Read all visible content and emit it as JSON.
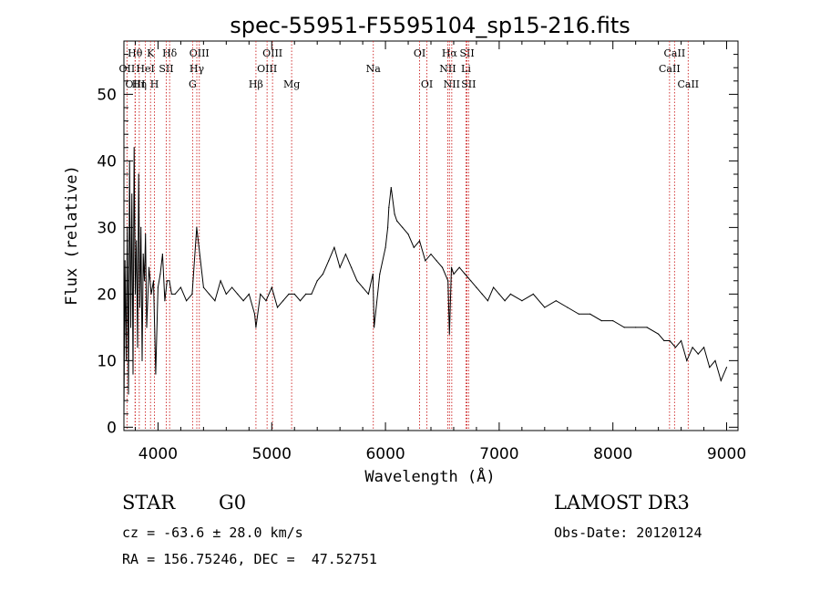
{
  "chart_data": {
    "type": "line",
    "title": "spec-55951-F5595104_sp15-216.fits",
    "xlabel": "Wavelength (Å)",
    "ylabel": "Flux (relative)",
    "xlim": [
      3700,
      9100
    ],
    "ylim": [
      -0.5,
      58
    ],
    "xticks": [
      4000,
      5000,
      6000,
      7000,
      8000,
      9000
    ],
    "yticks": [
      0,
      10,
      20,
      30,
      40,
      50
    ],
    "grid": false,
    "series": [
      {
        "name": "spectrum",
        "x": [
          3700,
          3710,
          3720,
          3730,
          3740,
          3750,
          3760,
          3770,
          3780,
          3790,
          3800,
          3810,
          3820,
          3830,
          3840,
          3850,
          3860,
          3870,
          3880,
          3890,
          3900,
          3920,
          3940,
          3960,
          3980,
          4000,
          4020,
          4040,
          4060,
          4080,
          4100,
          4120,
          4150,
          4200,
          4250,
          4300,
          4340,
          4400,
          4450,
          4500,
          4550,
          4600,
          4650,
          4700,
          4750,
          4800,
          4850,
          4861,
          4900,
          4950,
          5000,
          5050,
          5100,
          5150,
          5200,
          5250,
          5300,
          5350,
          5400,
          5450,
          5500,
          5550,
          5600,
          5650,
          5700,
          5750,
          5800,
          5850,
          5890,
          5900,
          5950,
          6000,
          6020,
          6030,
          6050,
          6080,
          6100,
          6150,
          6200,
          6250,
          6300,
          6350,
          6400,
          6450,
          6500,
          6550,
          6563,
          6580,
          6600,
          6650,
          6700,
          6750,
          6800,
          6850,
          6900,
          6950,
          7000,
          7050,
          7100,
          7200,
          7300,
          7400,
          7500,
          7600,
          7700,
          7800,
          7900,
          8000,
          8100,
          8200,
          8300,
          8400,
          8450,
          8500,
          8550,
          8600,
          8650,
          8700,
          8750,
          8800,
          8850,
          8900,
          8950,
          9000
        ],
        "values": [
          2,
          25,
          10,
          30,
          5,
          40,
          15,
          35,
          8,
          42,
          20,
          28,
          12,
          38,
          18,
          30,
          10,
          26,
          22,
          29,
          15,
          24,
          20,
          22,
          8,
          21,
          23,
          26,
          19,
          22,
          22,
          20,
          20,
          21,
          19,
          20,
          30,
          21,
          20,
          19,
          22,
          20,
          21,
          20,
          19,
          20,
          17,
          15,
          20,
          19,
          21,
          18,
          19,
          20,
          20,
          19,
          20,
          20,
          22,
          23,
          25,
          27,
          24,
          26,
          24,
          22,
          21,
          20,
          23,
          15,
          23,
          27,
          30,
          33,
          36,
          32,
          31,
          30,
          29,
          27,
          28,
          25,
          26,
          25,
          24,
          22,
          14,
          24,
          23,
          24,
          23,
          22,
          21,
          20,
          19,
          21,
          20,
          19,
          20,
          19,
          20,
          18,
          19,
          18,
          17,
          17,
          16,
          16,
          15,
          15,
          15,
          14,
          13,
          13,
          12,
          13,
          10,
          12,
          11,
          12,
          9,
          10,
          7,
          9
        ]
      }
    ],
    "line_marks": [
      {
        "label": "OII",
        "row": 1,
        "x": 3727
      },
      {
        "label": "Hθ",
        "row": 0,
        "x": 3798
      },
      {
        "label": "OIII",
        "row": 2,
        "x": 3800
      },
      {
        "label": "HeI",
        "row": 1,
        "x": 3889
      },
      {
        "label": "Hη",
        "row": 2,
        "x": 3835
      },
      {
        "label": "K",
        "row": 0,
        "x": 3934
      },
      {
        "label": "SII",
        "row": 1,
        "x": 4072
      },
      {
        "label": "H",
        "row": 2,
        "x": 3969
      },
      {
        "label": "Hδ",
        "row": 0,
        "x": 4102
      },
      {
        "label": "OIII",
        "row": 0,
        "x": 4363
      },
      {
        "label": "Hγ",
        "row": 1,
        "x": 4341
      },
      {
        "label": "G",
        "row": 2,
        "x": 4304
      },
      {
        "label": "Hβ",
        "row": 2,
        "x": 4861
      },
      {
        "label": "OIII",
        "row": 0,
        "x": 5007
      },
      {
        "label": "OIII",
        "row": 1,
        "x": 4959
      },
      {
        "label": "Mg",
        "row": 2,
        "x": 5175
      },
      {
        "label": "Na",
        "row": 1,
        "x": 5893
      },
      {
        "label": "OI",
        "row": 0,
        "x": 6300
      },
      {
        "label": "OI",
        "row": 2,
        "x": 6364
      },
      {
        "label": "Hα",
        "row": 0,
        "x": 6563
      },
      {
        "label": "SII",
        "row": 0,
        "x": 6717
      },
      {
        "label": "NII",
        "row": 1,
        "x": 6548
      },
      {
        "label": "Li",
        "row": 1,
        "x": 6708
      },
      {
        "label": "NII",
        "row": 2,
        "x": 6583
      },
      {
        "label": "SII",
        "row": 2,
        "x": 6731
      },
      {
        "label": "CaII",
        "row": 0,
        "x": 8542
      },
      {
        "label": "CaII",
        "row": 1,
        "x": 8498
      },
      {
        "label": "CaII",
        "row": 2,
        "x": 8662
      }
    ],
    "line_mark_color": "#cc2222"
  },
  "info": {
    "object_class": "STAR",
    "subclass": "G0",
    "survey": "LAMOST DR3",
    "redshift": "cz = -63.6 ± 28.0 km/s",
    "obs_date": "Obs-Date: 20120124",
    "coords": "RA = 156.75246, DEC =  47.52751"
  }
}
